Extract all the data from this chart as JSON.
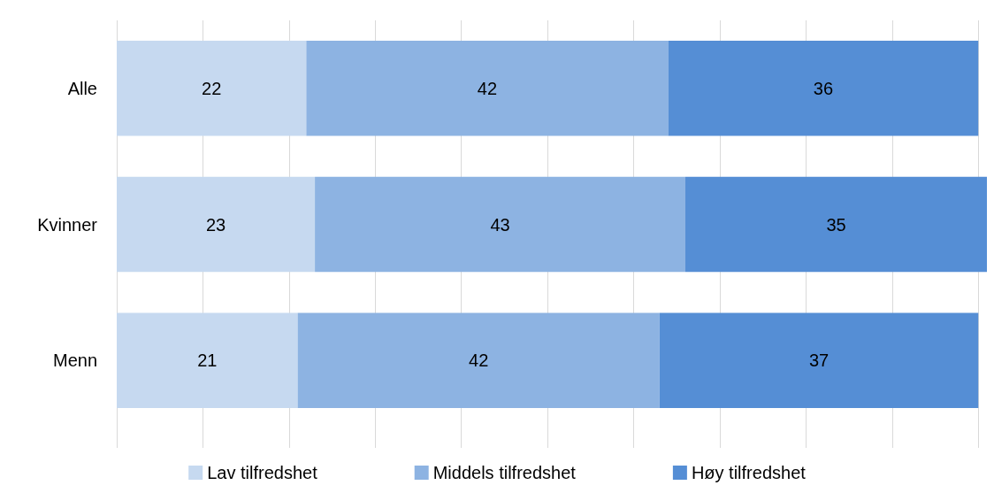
{
  "chart_data": {
    "type": "bar",
    "orientation": "horizontal",
    "stacked": true,
    "data_labels": true,
    "categories": [
      "Alle",
      "Kvinner",
      "Menn"
    ],
    "series": [
      {
        "name": "Lav tilfredshet",
        "color": "#c6d9f0",
        "values": [
          22,
          23,
          21
        ]
      },
      {
        "name": "Middels tilfredshet",
        "color": "#8db3e2",
        "values": [
          42,
          43,
          42
        ]
      },
      {
        "name": "Høy tilfredshet",
        "color": "#558ed5",
        "values": [
          36,
          35,
          37
        ]
      }
    ],
    "xlim": [
      0,
      101
    ],
    "xticks": [
      0,
      10,
      20,
      30,
      40,
      50,
      60,
      70,
      80,
      90,
      100
    ],
    "tick_labels": "y",
    "grid": "x",
    "legend": "bottom"
  }
}
